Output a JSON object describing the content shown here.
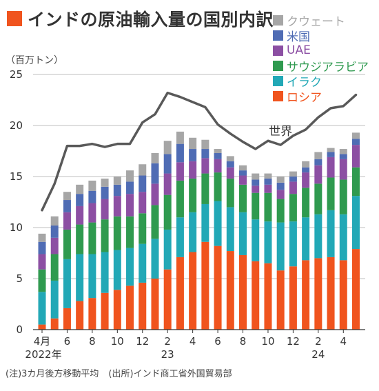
{
  "title": "インドの原油輸入量の国別内訳",
  "unit_label": "（百万トン）",
  "footnote": "(注)3カ月後方移動平均",
  "source": "(出所)インド商工省外国貿易部",
  "colors": {
    "title_square": "#f0541e",
    "world_line": "#595959",
    "grid": "#bfbfbf"
  },
  "chart_data": {
    "type": "bar",
    "stacked": true,
    "ylim": [
      0,
      25
    ],
    "yticks": [
      "0",
      "5",
      "10",
      "15",
      "20",
      "25"
    ],
    "grid": true,
    "legend_position": "top-right",
    "categories": [
      "2022-04",
      "2022-05",
      "2022-06",
      "2022-07",
      "2022-08",
      "2022-09",
      "2022-10",
      "2022-11",
      "2022-12",
      "2023-01",
      "2023-02",
      "2023-03",
      "2023-04",
      "2023-05",
      "2023-06",
      "2023-07",
      "2023-08",
      "2023-09",
      "2023-10",
      "2023-11",
      "2023-12",
      "2024-01",
      "2024-02",
      "2024-03",
      "2024-04",
      "2024-05"
    ],
    "x_tick_labels": [
      "4月",
      "",
      "6",
      "",
      "8",
      "",
      "10",
      "",
      "12",
      "",
      "2",
      "",
      "4",
      "",
      "6",
      "",
      "8",
      "",
      "10",
      "",
      "12",
      "",
      "2",
      "",
      "4",
      ""
    ],
    "year_labels": [
      {
        "index": 0,
        "label": "2022年"
      },
      {
        "index": 10,
        "label": "23"
      },
      {
        "index": 22,
        "label": "24"
      }
    ],
    "series": [
      {
        "name": "ロシア",
        "color": "#f0541e",
        "values": [
          0.5,
          1.1,
          2.1,
          2.8,
          3.1,
          3.6,
          3.9,
          4.3,
          4.6,
          5.0,
          5.9,
          7.1,
          7.6,
          8.6,
          8.2,
          7.7,
          7.3,
          6.7,
          6.5,
          5.8,
          6.2,
          6.8,
          7.0,
          7.1,
          6.8,
          7.9
        ]
      },
      {
        "name": "イラク",
        "color": "#22a8b6",
        "values": [
          3.2,
          3.7,
          4.8,
          4.6,
          4.3,
          4.0,
          3.9,
          3.7,
          3.8,
          3.9,
          3.9,
          3.9,
          3.9,
          3.7,
          4.4,
          4.3,
          4.2,
          4.1,
          4.1,
          4.7,
          4.4,
          4.2,
          4.3,
          4.6,
          4.5,
          5.2
        ]
      },
      {
        "name": "サウジアラビア",
        "color": "#2f9a4f",
        "values": [
          2.2,
          2.6,
          2.9,
          2.9,
          3.1,
          3.2,
          3.3,
          3.1,
          3.0,
          3.3,
          3.4,
          3.6,
          3.3,
          3.0,
          2.8,
          2.8,
          2.7,
          2.6,
          2.8,
          2.3,
          2.7,
          2.9,
          3.0,
          3.2,
          3.4,
          2.8
        ]
      },
      {
        "name": "UAE",
        "color": "#8c4fa3",
        "values": [
          1.5,
          1.6,
          1.7,
          1.8,
          1.9,
          2.0,
          2.0,
          2.2,
          2.1,
          2.1,
          2.1,
          1.8,
          1.7,
          1.5,
          1.3,
          1.1,
          0.9,
          0.7,
          0.8,
          0.9,
          1.2,
          1.5,
          1.8,
          2.0,
          2.0,
          2.2
        ]
      },
      {
        "name": "米国",
        "color": "#4f6cb4",
        "values": [
          1.2,
          1.2,
          1.2,
          1.2,
          1.2,
          1.2,
          1.1,
          1.2,
          1.6,
          2.0,
          1.9,
          1.8,
          1.2,
          0.9,
          0.6,
          0.6,
          0.5,
          0.6,
          0.6,
          0.7,
          0.5,
          0.5,
          0.6,
          0.5,
          0.5,
          0.6
        ]
      },
      {
        "name": "クウェート",
        "color": "#a6a6a6",
        "values": [
          0.8,
          0.9,
          0.8,
          0.9,
          1.0,
          0.8,
          0.8,
          1.1,
          1.1,
          1.0,
          1.3,
          1.2,
          1.1,
          0.9,
          0.4,
          0.5,
          0.5,
          0.6,
          0.5,
          0.6,
          0.5,
          0.6,
          0.7,
          0.4,
          0.5,
          0.6
        ]
      }
    ],
    "line": {
      "name": "世界",
      "color": "#595959",
      "values": [
        11.7,
        14.3,
        18.0,
        18.0,
        18.2,
        17.9,
        18.2,
        18.2,
        20.3,
        21.1,
        23.2,
        22.8,
        22.3,
        21.8,
        20.1,
        19.2,
        18.4,
        17.7,
        18.5,
        18.1,
        19.0,
        19.6,
        20.8,
        21.7,
        21.9,
        23.0
      ]
    }
  }
}
